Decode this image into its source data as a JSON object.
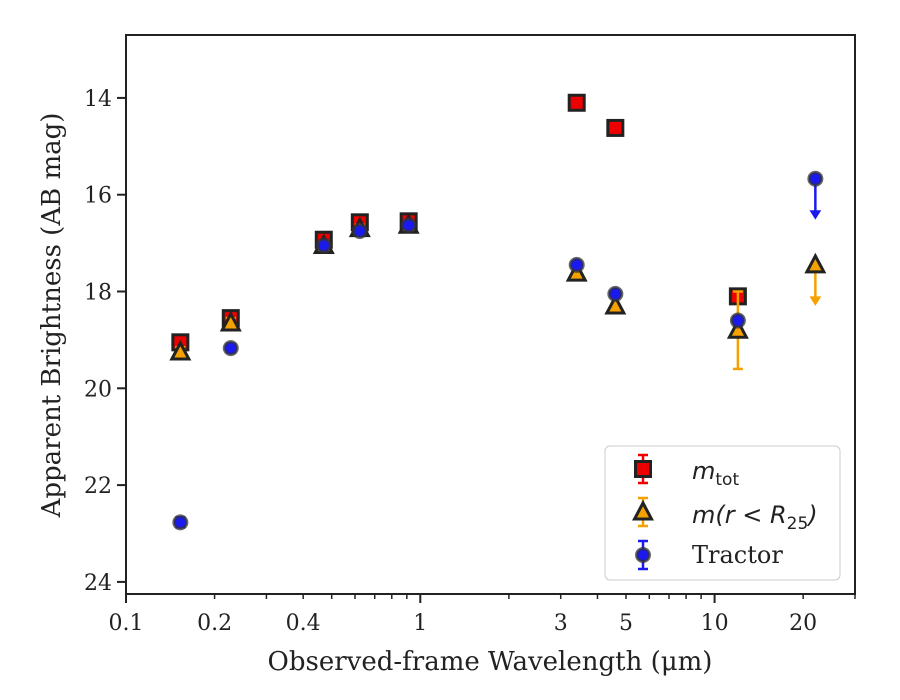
{
  "chart_data": {
    "type": "scatter",
    "title": "",
    "xlabel": "Observed-frame Wavelength (μm)",
    "ylabel": "Apparent Brightness (AB mag)",
    "xscale": "log",
    "yaxis_inverted": true,
    "xlim": [
      0.1,
      30
    ],
    "ylim": [
      24.25,
      12.7
    ],
    "x_ticks": [
      0.1,
      0.2,
      0.4,
      1,
      3,
      5,
      10,
      20
    ],
    "x_tick_labels": [
      "0.1",
      "0.2",
      "0.4",
      "1",
      "3",
      "5",
      "10",
      "20"
    ],
    "y_ticks": [
      14,
      16,
      18,
      20,
      22,
      24
    ],
    "y_tick_labels": [
      "14",
      "16",
      "18",
      "20",
      "22",
      "24"
    ],
    "grid": false,
    "legend_position": "bottom-right",
    "series": [
      {
        "name": "m_tot",
        "legend_label": {
          "italic": "m",
          "sub": "tot"
        },
        "marker": "square",
        "color": "#ee0000",
        "points": [
          {
            "x": 0.153,
            "y": 19.05,
            "err": 0.12
          },
          {
            "x": 0.227,
            "y": 18.55,
            "err": 0.1
          },
          {
            "x": 0.47,
            "y": 16.93,
            "err": 0.08
          },
          {
            "x": 0.623,
            "y": 16.57,
            "err": 0.08
          },
          {
            "x": 0.913,
            "y": 16.55,
            "err": 0.08
          },
          {
            "x": 3.4,
            "y": 14.1,
            "err": 0.05
          },
          {
            "x": 4.6,
            "y": 14.62,
            "err": 0.05
          },
          {
            "x": 12.0,
            "y": 18.1,
            "err": 0.1
          }
        ]
      },
      {
        "name": "m(r < R_25)",
        "legend_label": {
          "prefix": "m(r < R",
          "sub": "25",
          "suffix": ")"
        },
        "marker": "triangle",
        "color": "#f5a100",
        "points": [
          {
            "x": 0.153,
            "y": 19.25,
            "err": 0.1
          },
          {
            "x": 0.227,
            "y": 18.65,
            "err": 0.1
          },
          {
            "x": 0.47,
            "y": 17.05,
            "err": 0.08
          },
          {
            "x": 0.623,
            "y": 16.7,
            "err": 0.08
          },
          {
            "x": 0.913,
            "y": 16.63,
            "err": 0.08
          },
          {
            "x": 3.4,
            "y": 17.62,
            "err": 0.05
          },
          {
            "x": 4.6,
            "y": 18.3,
            "err": 0.05
          },
          {
            "x": 12.0,
            "y": 18.8,
            "err": 0.8
          },
          {
            "x": 22.0,
            "y": 17.45,
            "upper_limit": true
          }
        ]
      },
      {
        "name": "Tractor",
        "marker": "circle",
        "color": "#1a1aee",
        "points": [
          {
            "x": 0.153,
            "y": 22.77,
            "err": 0.1
          },
          {
            "x": 0.227,
            "y": 19.17,
            "err": 0.08
          },
          {
            "x": 0.47,
            "y": 17.05,
            "err": 0.05
          },
          {
            "x": 0.623,
            "y": 16.75,
            "err": 0.05
          },
          {
            "x": 0.913,
            "y": 16.63,
            "err": 0.05
          },
          {
            "x": 3.4,
            "y": 17.45,
            "err": 0.05
          },
          {
            "x": 4.6,
            "y": 18.05,
            "err": 0.05
          },
          {
            "x": 12.0,
            "y": 18.6,
            "err": 0.08
          },
          {
            "x": 22.0,
            "y": 15.67,
            "upper_limit": true
          }
        ]
      }
    ]
  }
}
